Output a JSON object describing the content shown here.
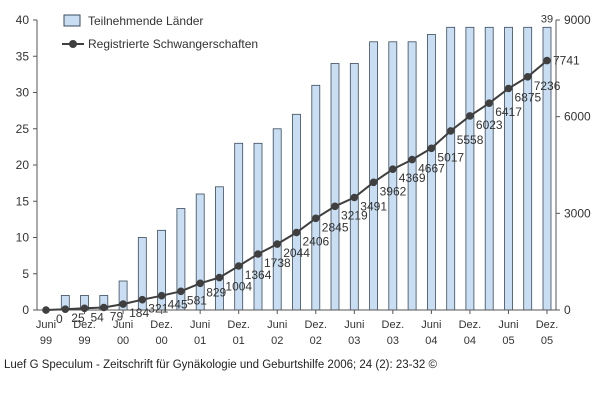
{
  "colors": {
    "bar_fill": "#c9def2",
    "bar_stroke": "#3a4a5c",
    "line": "#3f3f3f",
    "marker": "#3f3f3f",
    "axis": "#555555",
    "text": "#333333"
  },
  "chart_data": {
    "type": "bar+line",
    "legend_position": "top-left",
    "grid": false,
    "legend": {
      "bars": "Teilnehmende Länder",
      "line": "Registrierte Schwangerschaften"
    },
    "x_tick_labels": [
      {
        "line1": "Juni",
        "line2": "99"
      },
      {
        "line1": "Dez.",
        "line2": "99"
      },
      {
        "line1": "Juni",
        "line2": "00"
      },
      {
        "line1": "Dez.",
        "line2": "00"
      },
      {
        "line1": "Juni",
        "line2": "01"
      },
      {
        "line1": "Dez.",
        "line2": "01"
      },
      {
        "line1": "Juni",
        "line2": "02"
      },
      {
        "line1": "Dez.",
        "line2": "02"
      },
      {
        "line1": "Juni",
        "line2": "03"
      },
      {
        "line1": "Dez.",
        "line2": "03"
      },
      {
        "line1": "Juni",
        "line2": "04"
      },
      {
        "line1": "Dez.",
        "line2": "04"
      },
      {
        "line1": "Juni",
        "line2": "05"
      },
      {
        "line1": "Dez.",
        "line2": "05"
      }
    ],
    "y_left": {
      "min": 0,
      "max": 40,
      "ticks": [
        "0",
        "5",
        "10",
        "15",
        "20",
        "25",
        "30",
        "35",
        "40"
      ]
    },
    "y_right": {
      "min": 0,
      "max": 9000,
      "ticks": [
        "0",
        "3000",
        "6000",
        "9000"
      ]
    },
    "countries": [
      0,
      2,
      2,
      2,
      4,
      10,
      11,
      14,
      16,
      17,
      23,
      23,
      25,
      27,
      31,
      34,
      34,
      37,
      37,
      37,
      38,
      39,
      39,
      39,
      39,
      39,
      39
    ],
    "pregnancies": [
      0,
      25,
      54,
      79,
      184,
      321,
      445,
      581,
      829,
      1004,
      1364,
      1738,
      2044,
      2406,
      2845,
      3219,
      3491,
      3962,
      4369,
      4667,
      5017,
      5558,
      6023,
      6417,
      6875,
      7236,
      7741
    ],
    "pregnancy_labels": [
      "0",
      "25",
      "54",
      "79",
      "184",
      "321",
      "445",
      "581",
      "829",
      "1004",
      "1364",
      "1738",
      "2044",
      "2406",
      "2845",
      "3219",
      "3491",
      "3962",
      "4369",
      "4667",
      "5017",
      "5558",
      "6023",
      "6417",
      "6875",
      "7236",
      "7741"
    ],
    "last_bar_label": "39"
  },
  "caption": "Luef G  Speculum - Zeitschrift für Gynäkologie und Geburtshilfe 2006; 24 (2): 23-32 ©"
}
